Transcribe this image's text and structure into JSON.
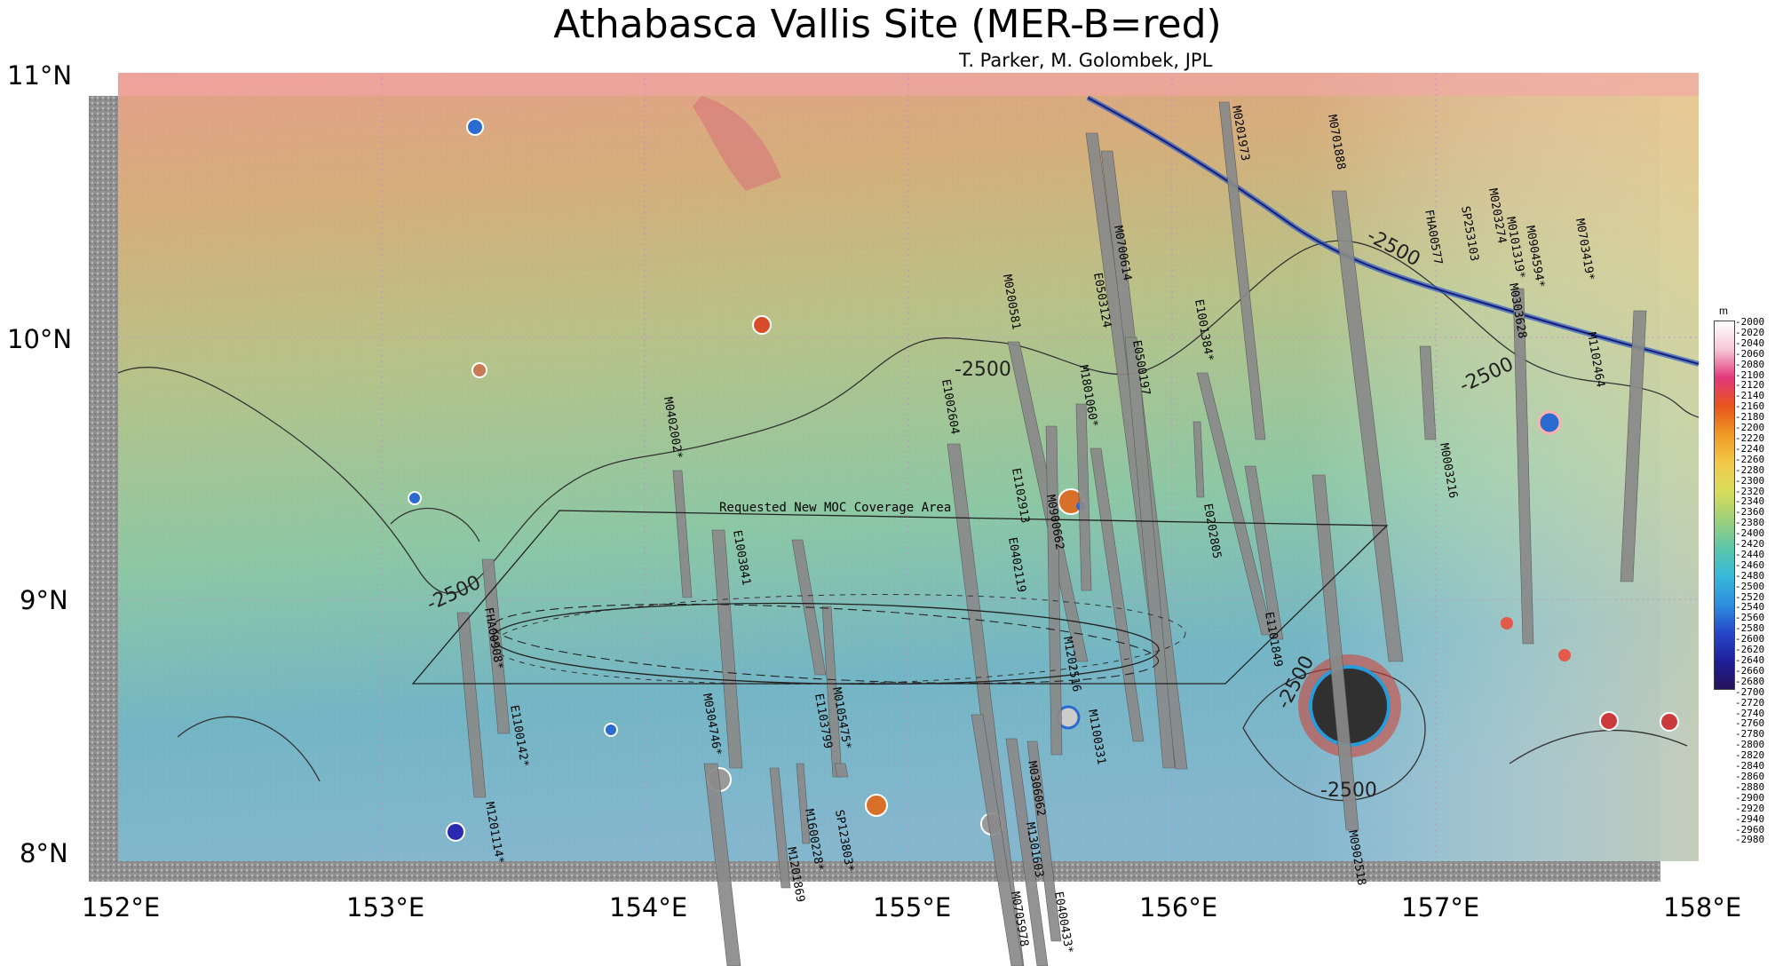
{
  "title": "Athabasca Vallis Site (MER-B=red)",
  "subtitle": "T. Parker, M. Golombek, JPL",
  "latitude_labels": [
    "11°N",
    "10°N",
    "9°N",
    "8°N"
  ],
  "longitude_labels": [
    "152°E",
    "153°E",
    "154°E",
    "155°E",
    "156°E",
    "157°E",
    "158°E"
  ],
  "request_area_label": "Requested New MOC Coverage Area",
  "contour_labels": [
    "-2500",
    "-2500",
    "-2500",
    "-2500",
    "-2500",
    "-2500"
  ],
  "strip_labels": [
    "M0201973",
    "M0701888",
    "M0700614",
    "E0503124",
    "E0500197",
    "M0200581",
    "E1001384*",
    "M1801060*",
    "E1002604",
    "E1102913",
    "M0900662",
    "E0402119",
    "E0202805",
    "M0402002*",
    "E1003841",
    "FHA00908*",
    "E1100142*",
    "M1201114*",
    "M0304746*",
    "M1600228*",
    "M1201869",
    "SP123803*",
    "M0105475*",
    "E1103799",
    "M1202516",
    "M1100331",
    "M0306062",
    "M1301603",
    "M0705978",
    "E0400433*",
    "E1101849",
    "M0902518",
    "FHA00577",
    "SP253103",
    "M0203274",
    "M0101319*",
    "M0904594*",
    "M0303628",
    "M0703419*",
    "M1102464",
    "M0003216"
  ],
  "colorbar": {
    "unit": "m",
    "ticks": [
      "-2000",
      "-2020",
      "-2040",
      "-2060",
      "-2080",
      "-2100",
      "-2120",
      "-2140",
      "-2160",
      "-2180",
      "-2200",
      "-2220",
      "-2240",
      "-2260",
      "-2280",
      "-2300",
      "-2320",
      "-2340",
      "-2360",
      "-2380",
      "-2400",
      "-2420",
      "-2440",
      "-2460",
      "-2480",
      "-2500",
      "-2520",
      "-2540",
      "-2560",
      "-2580",
      "-2600",
      "-2620",
      "-2640",
      "-2660",
      "-2680",
      "-2700",
      "-2720",
      "-2740",
      "-2760",
      "-2780",
      "-2800",
      "-2820",
      "-2840",
      "-2860",
      "-2880",
      "-2900",
      "-2920",
      "-2940",
      "-2960",
      "-2980"
    ],
    "gradient": [
      "#ffffff",
      "#f6c6d6",
      "#e2387a",
      "#e7551c",
      "#ef9a25",
      "#f3c94a",
      "#d9dd5a",
      "#9fd07a",
      "#5dc6a7",
      "#37b9d9",
      "#2e8fde",
      "#2648c9",
      "#1f1f9b",
      "#24125a"
    ]
  },
  "colors": {
    "ellipse_mer_b": "#cc0000",
    "contours": "#333333"
  }
}
